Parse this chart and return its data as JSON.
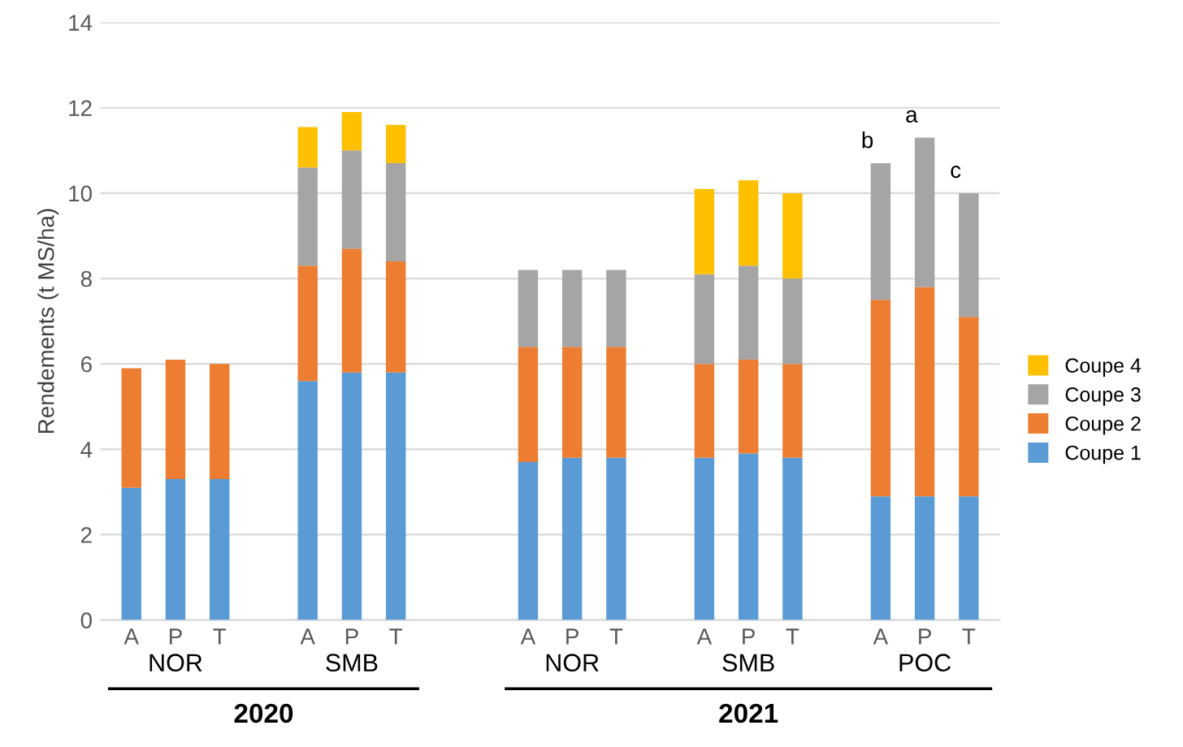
{
  "chart_data": {
    "type": "bar",
    "stacked": true,
    "ylabel": "Rendements (t MS/ha)",
    "categories": [
      "A",
      "P",
      "T",
      null,
      "A",
      "P",
      "T",
      null,
      null,
      "A",
      "P",
      "T",
      null,
      "A",
      "P",
      "T",
      null,
      "A",
      "P",
      "T"
    ],
    "series": [
      {
        "name": "Coupe 1",
        "color": "#5b9bd5",
        "values": [
          3.1,
          3.3,
          3.3,
          null,
          5.6,
          5.8,
          5.8,
          null,
          null,
          3.7,
          3.8,
          3.8,
          null,
          3.8,
          3.9,
          3.8,
          null,
          2.9,
          2.9,
          2.9
        ]
      },
      {
        "name": "Coupe 2",
        "color": "#ed7d31",
        "values": [
          2.8,
          2.8,
          2.7,
          null,
          2.7,
          2.9,
          2.6,
          null,
          null,
          2.7,
          2.6,
          2.6,
          null,
          2.2,
          2.2,
          2.2,
          null,
          4.6,
          4.9,
          4.2
        ]
      },
      {
        "name": "Coupe 3",
        "color": "#a5a5a5",
        "values": [
          null,
          null,
          null,
          null,
          2.3,
          2.3,
          2.3,
          null,
          null,
          1.8,
          1.8,
          1.8,
          null,
          2.1,
          2.2,
          2.0,
          null,
          3.2,
          3.5,
          2.9
        ]
      },
      {
        "name": "Coupe 4",
        "color": "#ffc000",
        "values": [
          null,
          null,
          null,
          null,
          0.95,
          0.9,
          0.9,
          null,
          null,
          null,
          null,
          null,
          null,
          2.0,
          2.0,
          2.0,
          null,
          null,
          null,
          null
        ]
      }
    ],
    "annotations": [
      "NOR",
      "SMB",
      "NOR",
      "SMB",
      "POC",
      "2020",
      "2021",
      "b",
      "a",
      "c"
    ],
    "ylim": [
      0,
      14
    ],
    "yticks": [
      0,
      2,
      4,
      6,
      8,
      10,
      12,
      14
    ],
    "grid": "y",
    "legend": "right"
  }
}
